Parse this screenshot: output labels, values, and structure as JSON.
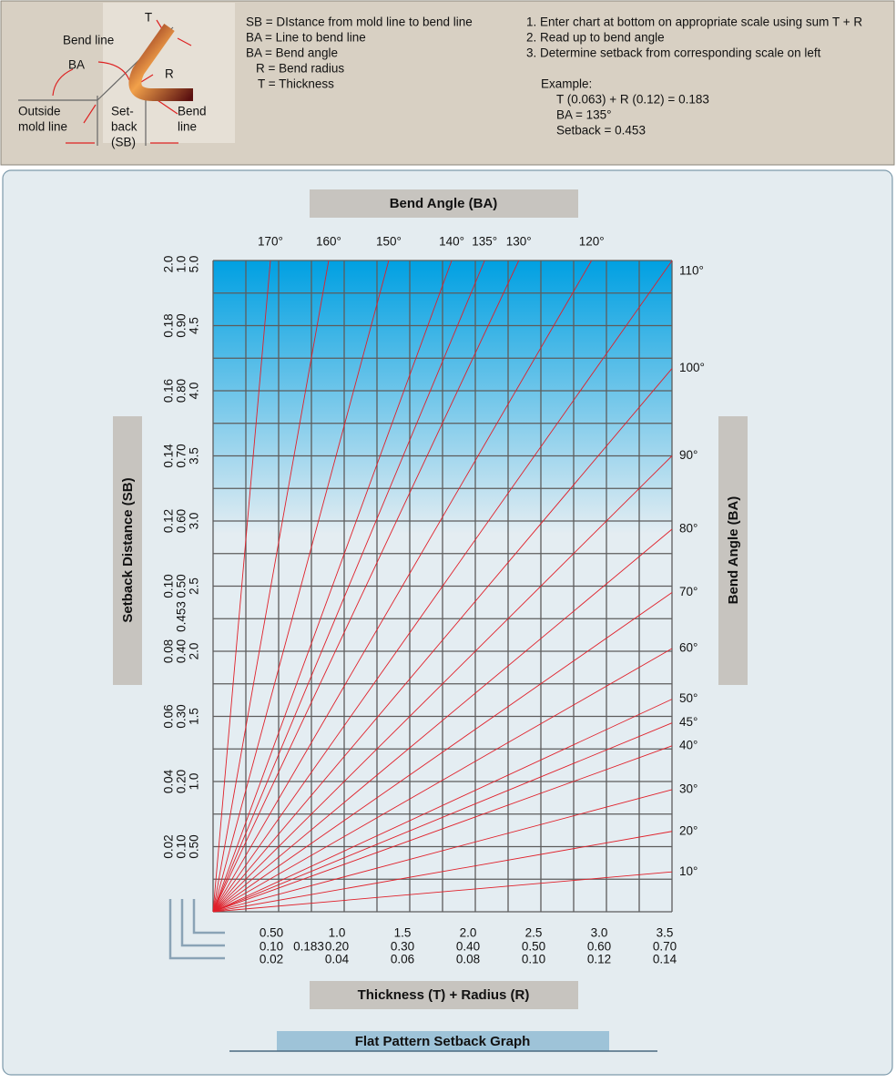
{
  "header": {
    "diagram_labels": {
      "t": "T",
      "bend_line_top": "Bend line",
      "ba": "BA",
      "r": "R",
      "outside_mold_line": [
        "Outside",
        "mold line"
      ],
      "setback": [
        "Set-",
        "back",
        "(SB)"
      ],
      "bend_line_bottom": [
        "Bend",
        "line"
      ]
    },
    "legend": [
      "SB = DIstance from mold line to bend line",
      "BA = Line to bend line",
      "BA = Bend angle",
      "R = Bend radius",
      "T = Thickness"
    ],
    "instructions": [
      "1. Enter chart at bottom on appropriate scale using sum T + R",
      "2. Read up to bend angle",
      "3. Determine setback from corresponding scale on left"
    ],
    "example": {
      "title": "Example:",
      "lines": [
        "T (0.063) + R (0.12) = 0.183",
        "BA = 135°",
        "Setback = 0.453"
      ]
    }
  },
  "chart_data": {
    "type": "nomogram",
    "top_title": "Bend Angle (BA)",
    "y_axis_title": "Setback Distance (SB)",
    "right_axis_title": "Bend Angle (BA)",
    "x_axis_title": "Thickness (T) + Radius (R)",
    "caption": "Flat Pattern Setback Graph",
    "top_angles": [
      {
        "value": 170,
        "label": "170°"
      },
      {
        "value": 160,
        "label": "160°"
      },
      {
        "value": 150,
        "label": "150°"
      },
      {
        "value": 140,
        "label": "140°"
      },
      {
        "value": 135,
        "label": "135°"
      },
      {
        "value": 130,
        "label": "130°"
      },
      {
        "value": 120,
        "label": "120°"
      }
    ],
    "right_angles": [
      {
        "value": 110,
        "label": "110°"
      },
      {
        "value": 100,
        "label": "100°"
      },
      {
        "value": 90,
        "label": "90°"
      },
      {
        "value": 80,
        "label": "80°"
      },
      {
        "value": 70,
        "label": "70°"
      },
      {
        "value": 60,
        "label": "60°"
      },
      {
        "value": 50,
        "label": "50°"
      },
      {
        "value": 45,
        "label": "45°"
      },
      {
        "value": 40,
        "label": "40°"
      },
      {
        "value": 30,
        "label": "30°"
      },
      {
        "value": 20,
        "label": "20°"
      },
      {
        "value": 10,
        "label": "10°"
      }
    ],
    "left_scales": [
      [
        "0.02",
        "0.04",
        "0.06",
        "0.08",
        "0.10",
        "0.12",
        "0.14",
        "0.16",
        "0.18",
        "2.0"
      ],
      [
        "0.10",
        "0.20",
        "0.30",
        "0.40",
        "0.50",
        "0.60",
        "0.70",
        "0.80",
        "0.90",
        "1.0"
      ],
      [
        "0.50",
        "1.0",
        "1.5",
        "2.0",
        "2.5",
        "3.0",
        "3.5",
        "4.0",
        "4.5",
        "5.0"
      ]
    ],
    "bottom_scales": [
      [
        "0.50",
        "1.0",
        "1.5",
        "2.0",
        "2.5",
        "3.0",
        "3.5"
      ],
      [
        "0.10",
        "0.20",
        "0.30",
        "0.40",
        "0.50",
        "0.60",
        "0.70"
      ],
      [
        "0.02",
        "0.04",
        "0.06",
        "0.08",
        "0.10",
        "0.12",
        "0.14"
      ]
    ],
    "example_x": "0.183",
    "example_y": "0.453"
  }
}
